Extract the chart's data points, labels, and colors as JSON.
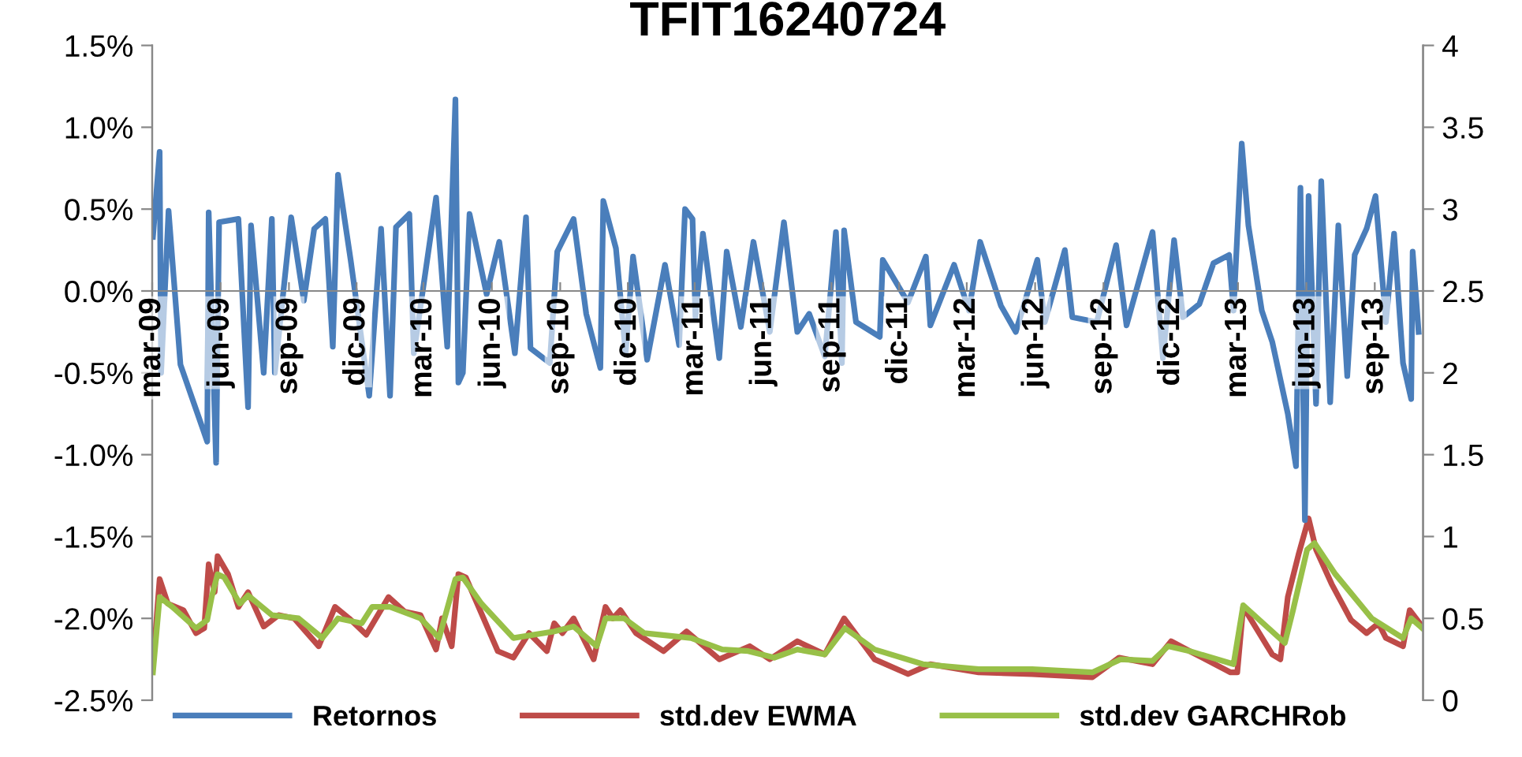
{
  "chart_data": {
    "type": "line",
    "title": "TFIT16240724",
    "xlim": [
      "2009-03-01",
      "2013-11-05"
    ],
    "xticks": [
      {
        "value": "2009-03-01",
        "label": "mar-09"
      },
      {
        "value": "2009-06-01",
        "label": "jun-09"
      },
      {
        "value": "2009-09-01",
        "label": "sep-09"
      },
      {
        "value": "2009-12-01",
        "label": "dic-09"
      },
      {
        "value": "2010-03-01",
        "label": "mar-10"
      },
      {
        "value": "2010-06-01",
        "label": "jun-10"
      },
      {
        "value": "2010-09-01",
        "label": "sep-10"
      },
      {
        "value": "2010-12-01",
        "label": "dic-10"
      },
      {
        "value": "2011-03-01",
        "label": "mar-11"
      },
      {
        "value": "2011-06-01",
        "label": "jun-11"
      },
      {
        "value": "2011-09-01",
        "label": "sep-11"
      },
      {
        "value": "2011-12-01",
        "label": "dic-11"
      },
      {
        "value": "2012-03-01",
        "label": "mar-12"
      },
      {
        "value": "2012-06-01",
        "label": "jun-12"
      },
      {
        "value": "2012-09-01",
        "label": "sep-12"
      },
      {
        "value": "2012-12-01",
        "label": "dic-12"
      },
      {
        "value": "2013-03-01",
        "label": "mar-13"
      },
      {
        "value": "2013-06-01",
        "label": "jun-13"
      },
      {
        "value": "2013-09-01",
        "label": "sep-13"
      }
    ],
    "ylim": [
      -2.5,
      1.5
    ],
    "yticks": [
      {
        "value": -2.5,
        "label": "-2.5%"
      },
      {
        "value": -2.0,
        "label": "-2.0%"
      },
      {
        "value": -1.5,
        "label": "-1.5%"
      },
      {
        "value": -1.0,
        "label": "-1.0%"
      },
      {
        "value": -0.5,
        "label": "-0.5%"
      },
      {
        "value": 0.0,
        "label": "0.0%"
      },
      {
        "value": 0.5,
        "label": "0.5%"
      },
      {
        "value": 1.0,
        "label": "1.0%"
      },
      {
        "value": 1.5,
        "label": "1.5%"
      }
    ],
    "y2lim": [
      0,
      4
    ],
    "y2ticks": [
      0,
      0.5,
      1,
      1.5,
      2,
      2.5,
      3,
      3.5,
      4
    ],
    "grid": false,
    "legend": "bottom",
    "marker": "none",
    "line_style": "solid",
    "series": [
      {
        "name": "Retornos",
        "color": "#4a7ebb",
        "x": [
          "2009-03-02",
          "2009-03-11",
          "2009-03-13",
          "2009-03-23",
          "2009-04-08",
          "2009-05-14",
          "2009-05-16",
          "2009-05-26",
          "2009-05-30",
          "2009-06-25",
          "2009-07-08",
          "2009-07-12",
          "2009-07-29",
          "2009-08-09",
          "2009-08-13",
          "2009-09-04",
          "2009-09-21",
          "2009-10-05",
          "2009-10-20",
          "2009-10-30",
          "2009-11-06",
          "2009-11-23",
          "2009-12-18",
          "2010-01-03",
          "2010-01-15",
          "2010-01-23",
          "2010-02-10",
          "2010-02-16",
          "2010-03-18",
          "2010-04-02",
          "2010-04-13",
          "2010-04-17",
          "2010-04-23",
          "2010-05-02",
          "2010-05-25",
          "2010-06-11",
          "2010-07-02",
          "2010-07-17",
          "2010-07-23",
          "2010-08-18",
          "2010-08-28",
          "2010-09-19",
          "2010-10-06",
          "2010-10-25",
          "2010-10-29",
          "2010-11-15",
          "2010-11-28",
          "2010-12-08",
          "2010-12-27",
          "2011-01-20",
          "2011-02-08",
          "2011-02-16",
          "2011-02-26",
          "2011-03-02",
          "2011-03-12",
          "2011-04-03",
          "2011-04-13",
          "2011-05-02",
          "2011-05-19",
          "2011-06-10",
          "2011-06-29",
          "2011-07-17",
          "2011-08-02",
          "2011-08-23",
          "2011-09-07",
          "2011-09-15",
          "2011-09-18",
          "2011-10-04",
          "2011-11-05",
          "2011-11-09",
          "2011-12-13",
          "2012-01-06",
          "2012-01-12",
          "2012-02-13",
          "2012-03-04",
          "2012-03-19",
          "2012-04-16",
          "2012-05-06",
          "2012-06-04",
          "2012-06-14",
          "2012-07-11",
          "2012-07-21",
          "2012-08-23",
          "2012-09-18",
          "2012-10-02",
          "2012-11-06",
          "2012-11-20",
          "2012-12-05",
          "2012-12-17",
          "2013-01-08",
          "2013-01-27",
          "2013-02-17",
          "2013-02-23",
          "2013-03-06",
          "2013-03-15",
          "2013-04-02",
          "2013-04-16",
          "2013-05-07",
          "2013-05-18",
          "2013-05-24",
          "2013-05-30",
          "2013-06-04",
          "2013-06-14",
          "2013-06-21",
          "2013-07-03",
          "2013-07-14",
          "2013-07-26",
          "2013-08-05",
          "2013-08-21",
          "2013-09-02",
          "2013-09-16",
          "2013-09-27",
          "2013-10-09",
          "2013-10-20",
          "2013-10-22",
          "2013-10-30"
        ],
        "values": [
          0.33,
          0.85,
          -0.5,
          0.49,
          -0.45,
          -0.92,
          0.48,
          -1.05,
          0.42,
          0.44,
          -0.71,
          0.4,
          -0.5,
          0.44,
          -0.5,
          0.45,
          -0.06,
          0.38,
          0.44,
          -0.34,
          0.71,
          0.19,
          -0.64,
          0.38,
          -0.64,
          0.39,
          0.47,
          -0.38,
          0.57,
          -0.34,
          1.17,
          -0.56,
          -0.5,
          0.47,
          -0.02,
          0.3,
          -0.38,
          0.45,
          -0.35,
          -0.44,
          0.24,
          0.44,
          -0.14,
          -0.47,
          0.55,
          0.26,
          -0.38,
          0.21,
          -0.42,
          0.16,
          -0.33,
          0.5,
          0.44,
          -0.16,
          0.35,
          -0.41,
          0.24,
          -0.22,
          0.3,
          -0.25,
          0.42,
          -0.25,
          -0.14,
          -0.4,
          0.36,
          -0.44,
          0.37,
          -0.19,
          -0.28,
          0.19,
          -0.07,
          0.21,
          -0.21,
          0.16,
          -0.12,
          0.3,
          -0.09,
          -0.25,
          0.19,
          -0.19,
          0.25,
          -0.16,
          -0.19,
          0.28,
          -0.21,
          0.36,
          -0.41,
          0.31,
          -0.16,
          -0.08,
          0.17,
          0.22,
          -0.12,
          0.9,
          0.4,
          -0.12,
          -0.31,
          -0.75,
          -1.07,
          0.63,
          -1.4,
          0.58,
          -0.69,
          0.67,
          -0.68,
          0.4,
          -0.52,
          0.22,
          0.38,
          0.58,
          -0.19,
          0.35,
          -0.44,
          -0.66,
          0.24,
          -0.25
        ]
      },
      {
        "name": "std.dev EWMA",
        "color": "#be4b48",
        "axis": "y2",
        "x": [
          "2009-03-02",
          "2009-03-11",
          "2009-03-22",
          "2009-04-12",
          "2009-04-29",
          "2009-05-10",
          "2009-05-16",
          "2009-05-24",
          "2009-05-28",
          "2009-06-11",
          "2009-06-25",
          "2009-07-08",
          "2009-07-29",
          "2009-08-18",
          "2009-09-08",
          "2009-10-11",
          "2009-11-02",
          "2009-11-21",
          "2009-12-14",
          "2010-01-13",
          "2010-02-04",
          "2010-02-25",
          "2010-03-18",
          "2010-03-26",
          "2010-04-08",
          "2010-04-17",
          "2010-04-27",
          "2010-06-09",
          "2010-06-30",
          "2010-07-21",
          "2010-08-14",
          "2010-08-24",
          "2010-09-04",
          "2010-09-19",
          "2010-10-16",
          "2010-11-01",
          "2010-11-11",
          "2010-11-21",
          "2010-12-12",
          "2011-01-18",
          "2011-02-18",
          "2011-04-03",
          "2011-05-14",
          "2011-06-10",
          "2011-07-17",
          "2011-08-23",
          "2011-09-18",
          "2011-10-29",
          "2011-12-13",
          "2012-01-12",
          "2012-03-17",
          "2012-05-28",
          "2012-08-17",
          "2012-09-22",
          "2012-10-15",
          "2012-11-06",
          "2012-12-01",
          "2012-12-26",
          "2013-02-19",
          "2013-02-28",
          "2013-03-08",
          "2013-04-16",
          "2013-04-27",
          "2013-05-07",
          "2013-05-22",
          "2013-06-04",
          "2013-06-14",
          "2013-07-05",
          "2013-07-31",
          "2013-08-21",
          "2013-09-06",
          "2013-09-16",
          "2013-10-09",
          "2013-10-18",
          "2013-11-04"
        ],
        "values": [
          0.21,
          0.74,
          0.59,
          0.55,
          0.41,
          0.44,
          0.83,
          0.66,
          0.88,
          0.77,
          0.57,
          0.66,
          0.45,
          0.52,
          0.5,
          0.33,
          0.57,
          0.5,
          0.4,
          0.63,
          0.54,
          0.52,
          0.31,
          0.5,
          0.33,
          0.77,
          0.75,
          0.3,
          0.26,
          0.41,
          0.3,
          0.47,
          0.41,
          0.5,
          0.25,
          0.57,
          0.5,
          0.55,
          0.41,
          0.3,
          0.42,
          0.25,
          0.33,
          0.25,
          0.36,
          0.28,
          0.5,
          0.25,
          0.16,
          0.22,
          0.17,
          0.16,
          0.14,
          0.26,
          0.24,
          0.22,
          0.36,
          0.3,
          0.17,
          0.17,
          0.57,
          0.28,
          0.25,
          0.63,
          0.9,
          1.11,
          0.92,
          0.71,
          0.49,
          0.41,
          0.47,
          0.38,
          0.33,
          0.55,
          0.45
        ]
      },
      {
        "name": "std.dev GARCHRob",
        "color": "#98c048",
        "axis": "y2",
        "x": [
          "2009-03-02",
          "2009-03-11",
          "2009-03-28",
          "2009-04-29",
          "2009-05-14",
          "2009-05-20",
          "2009-05-28",
          "2009-06-06",
          "2009-06-27",
          "2009-07-08",
          "2009-08-09",
          "2009-09-14",
          "2009-10-16",
          "2009-11-06",
          "2009-12-08",
          "2009-12-22",
          "2010-01-15",
          "2010-02-25",
          "2010-03-22",
          "2010-04-13",
          "2010-04-23",
          "2010-05-18",
          "2010-06-30",
          "2010-08-24",
          "2010-09-19",
          "2010-10-20",
          "2010-11-01",
          "2010-11-26",
          "2010-12-23",
          "2011-02-24",
          "2011-04-07",
          "2011-05-12",
          "2011-06-16",
          "2011-07-17",
          "2011-08-23",
          "2011-09-19",
          "2011-10-29",
          "2012-01-02",
          "2012-03-17",
          "2012-05-28",
          "2012-08-17",
          "2012-09-24",
          "2012-11-06",
          "2012-11-27",
          "2012-12-26",
          "2013-02-23",
          "2013-03-08",
          "2013-05-03",
          "2013-05-14",
          "2013-06-02",
          "2013-06-12",
          "2013-07-10",
          "2013-08-28",
          "2013-10-09",
          "2013-10-20",
          "2013-11-04"
        ],
        "values": [
          0.17,
          0.63,
          0.57,
          0.44,
          0.49,
          0.63,
          0.77,
          0.75,
          0.59,
          0.64,
          0.52,
          0.5,
          0.38,
          0.5,
          0.47,
          0.57,
          0.57,
          0.5,
          0.38,
          0.74,
          0.75,
          0.59,
          0.38,
          0.42,
          0.45,
          0.33,
          0.5,
          0.5,
          0.41,
          0.38,
          0.31,
          0.3,
          0.26,
          0.31,
          0.28,
          0.44,
          0.31,
          0.22,
          0.19,
          0.19,
          0.17,
          0.25,
          0.24,
          0.33,
          0.3,
          0.22,
          0.58,
          0.35,
          0.55,
          0.92,
          0.96,
          0.77,
          0.5,
          0.38,
          0.5,
          0.44
        ]
      }
    ]
  }
}
